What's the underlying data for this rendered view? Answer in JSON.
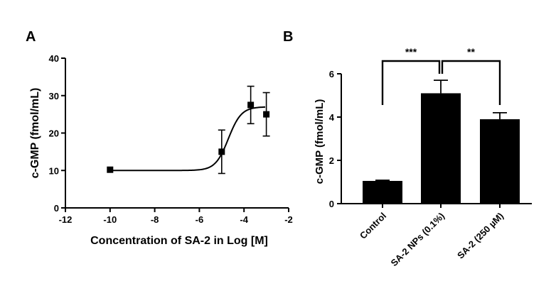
{
  "chart_data": [
    {
      "panel": "A",
      "type": "scatter",
      "xlabel": "Concentration of SA-2  in Log [M]",
      "ylabel": "c-GMP (fmol/mL)",
      "xlim": [
        -12,
        -2
      ],
      "ylim": [
        0,
        40
      ],
      "x_ticks": [
        "-12",
        "-10",
        "-8",
        "-6",
        "-4",
        "-2"
      ],
      "y_ticks": [
        "0",
        "10",
        "20",
        "30",
        "40"
      ],
      "points": [
        {
          "x": -10,
          "y": 10.2,
          "err": 0
        },
        {
          "x": -5,
          "y": 15.0,
          "err": 5.8
        },
        {
          "x": -3.7,
          "y": 27.5,
          "err": 5.0
        },
        {
          "x": -3,
          "y": 25.0,
          "err": 5.8
        }
      ],
      "fit": {
        "bottom": 10,
        "top": 27,
        "log_ec50": -4.7,
        "hill": 1.5
      }
    },
    {
      "panel": "B",
      "type": "bar",
      "ylabel": "c-GMP (fmol/mL)",
      "ylim": [
        0,
        6
      ],
      "y_ticks": [
        "0",
        "2",
        "4",
        "6"
      ],
      "categories": [
        "Control",
        "SA-2 NPs (0.1%)",
        "SA-2 (250 µM)"
      ],
      "values": [
        1.05,
        5.1,
        3.9
      ],
      "errors": [
        0.03,
        0.6,
        0.3
      ],
      "significance": [
        {
          "from": 0,
          "to": 1,
          "label": "***"
        },
        {
          "from": 1,
          "to": 2,
          "label": "**"
        }
      ]
    }
  ]
}
